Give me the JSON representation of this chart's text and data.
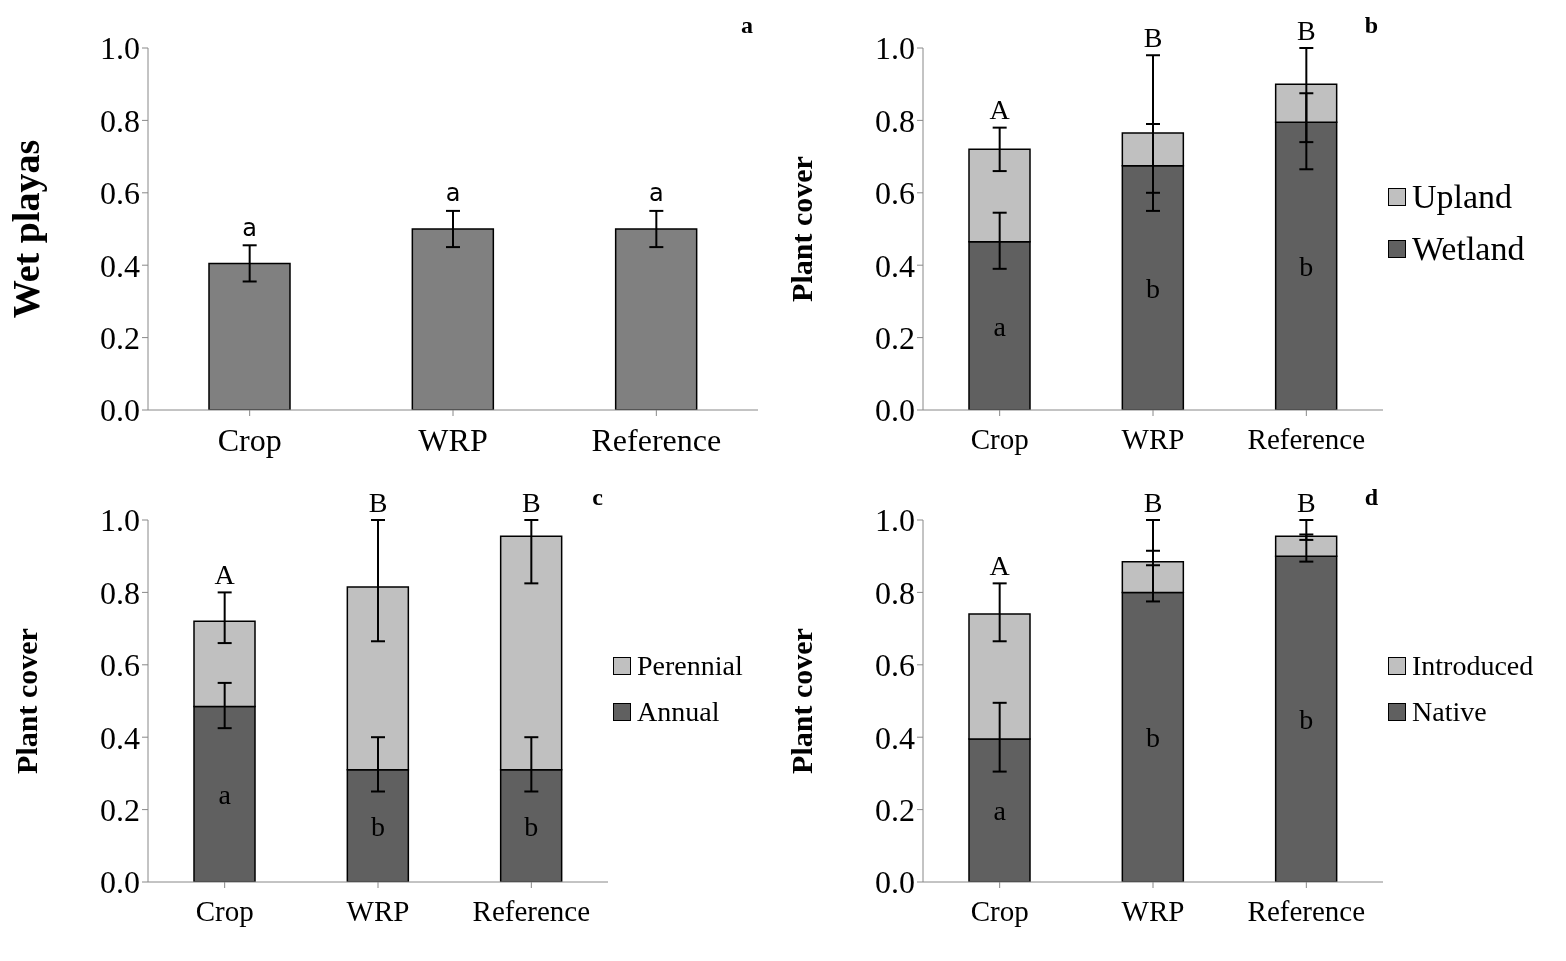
{
  "chart_data": [
    {
      "type": "bar",
      "title": "a",
      "ylabel": "Wet playas",
      "categories": [
        "Crop",
        "WRP",
        "Reference"
      ],
      "ylim": [
        0,
        1
      ],
      "yticks": [
        {
          "value": 0,
          "label": "0.0"
        },
        {
          "value": 0.2,
          "label": "0.2"
        },
        {
          "value": 0.4,
          "label": "0.4"
        },
        {
          "value": 0.6,
          "label": "0.6"
        },
        {
          "value": 0.8,
          "label": "0.8"
        },
        {
          "value": 1,
          "label": "1.0"
        }
      ],
      "grid": false,
      "legend": false,
      "series": [
        {
          "color": "#808080",
          "values": [
            0.405,
            0.5,
            0.5
          ],
          "errors": [
            [
              0.355,
              0.455
            ],
            [
              0.45,
              0.55
            ],
            [
              0.45,
              0.55
            ]
          ]
        }
      ],
      "annotations": [
        "a",
        "a",
        "a"
      ]
    },
    {
      "type": "bar",
      "title": "b",
      "ylabel": "Plant cover",
      "categories": [
        "Crop",
        "WRP",
        "Reference"
      ],
      "ylim": [
        0,
        1
      ],
      "yticks": [
        {
          "value": 0,
          "label": "0.0"
        },
        {
          "value": 0.2,
          "label": "0.2"
        },
        {
          "value": 0.4,
          "label": "0.4"
        },
        {
          "value": 0.6,
          "label": "0.6"
        },
        {
          "value": 0.8,
          "label": "0.8"
        },
        {
          "value": 1,
          "label": "1.0"
        }
      ],
      "grid": false,
      "legend": "right",
      "stacked": true,
      "series": [
        {
          "name": "Wetland",
          "color": "#606060",
          "values": [
            0.465,
            0.675,
            0.795
          ],
          "errors": [
            [
              0.39,
              0.545
            ],
            [
              0.55,
              0.79
            ],
            [
              0.665,
              0.875
            ]
          ]
        },
        {
          "name": "Upland",
          "color": "#c0c0c0",
          "values": [
            0.255,
            0.09,
            0.105
          ],
          "errors": [
            [
              0.66,
              0.78
            ],
            [
              0.6,
              0.98
            ],
            [
              0.74,
              1.0
            ]
          ]
        }
      ],
      "annotations": [
        "A",
        "B",
        "B",
        "a",
        "b",
        "b"
      ]
    },
    {
      "type": "bar",
      "title": "c",
      "ylabel": "Plant cover",
      "categories": [
        "Crop",
        "WRP",
        "Reference"
      ],
      "ylim": [
        0,
        1
      ],
      "yticks": [
        {
          "value": 0,
          "label": "0.0"
        },
        {
          "value": 0.2,
          "label": "0.2"
        },
        {
          "value": 0.4,
          "label": "0.4"
        },
        {
          "value": 0.6,
          "label": "0.6"
        },
        {
          "value": 0.8,
          "label": "0.8"
        },
        {
          "value": 1,
          "label": "1.0"
        }
      ],
      "grid": false,
      "legend": "right",
      "stacked": true,
      "series": [
        {
          "name": "Annual",
          "color": "#606060",
          "values": [
            0.485,
            0.31,
            0.31
          ],
          "errors": [
            [
              0.425,
              0.55
            ],
            [
              0.25,
              0.4
            ],
            [
              0.25,
              0.4
            ]
          ]
        },
        {
          "name": "Perennial",
          "color": "#c0c0c0",
          "values": [
            0.235,
            0.505,
            0.645
          ],
          "errors": [
            [
              0.66,
              0.8
            ],
            [
              0.665,
              1.0
            ],
            [
              0.825,
              1.0
            ]
          ]
        }
      ],
      "annotations": [
        "A",
        "B",
        "B",
        "a",
        "b",
        "b"
      ]
    },
    {
      "type": "bar",
      "title": "d",
      "ylabel": "Plant cover",
      "categories": [
        "Crop",
        "WRP",
        "Reference"
      ],
      "ylim": [
        0,
        1
      ],
      "yticks": [
        {
          "value": 0,
          "label": "0.0"
        },
        {
          "value": 0.2,
          "label": "0.2"
        },
        {
          "value": 0.4,
          "label": "0.4"
        },
        {
          "value": 0.6,
          "label": "0.6"
        },
        {
          "value": 0.8,
          "label": "0.8"
        },
        {
          "value": 1,
          "label": "1.0"
        }
      ],
      "grid": false,
      "legend": "right",
      "stacked": true,
      "series": [
        {
          "name": "Native",
          "color": "#606060",
          "values": [
            0.395,
            0.8,
            0.9
          ],
          "errors": [
            [
              0.305,
              0.495
            ],
            [
              0.775,
              0.915
            ],
            [
              0.885,
              0.96
            ]
          ]
        },
        {
          "name": "Introduced",
          "color": "#c0c0c0",
          "values": [
            0.345,
            0.085,
            0.055
          ],
          "errors": [
            [
              0.665,
              0.825
            ],
            [
              0.875,
              1.0
            ],
            [
              0.945,
              1.0
            ]
          ]
        }
      ],
      "annotations": [
        "A",
        "B",
        "B",
        "a",
        "b",
        "b"
      ]
    }
  ]
}
